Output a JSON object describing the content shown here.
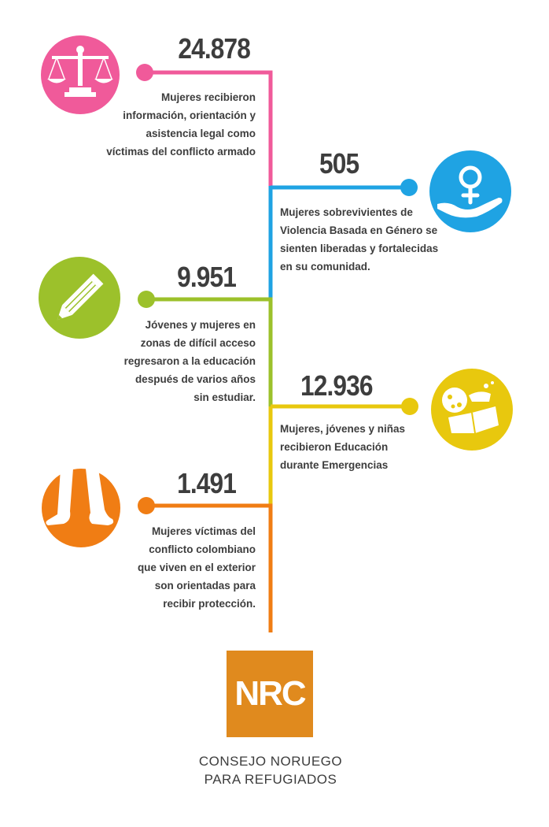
{
  "colors": {
    "pink": "#f05a9a",
    "blue": "#1fa3e3",
    "green": "#9cc12b",
    "yellow": "#e8c80e",
    "orange": "#f07d14",
    "nrc": "#e08a1e",
    "text": "#3d3d3d"
  },
  "stats": [
    {
      "value": "24.878",
      "description": "Mujeres recibieron\ninformación, orientación y\nasistencia legal como\nvíctimas del conflicto armado",
      "icon": "scales-icon",
      "color": "pink"
    },
    {
      "value": "505",
      "description": "Mujeres sobrevivientes de\nViolencia Basada en Género se\nsienten liberadas y fortalecidas\nen su comunidad.",
      "icon": "female-hand-icon",
      "color": "blue"
    },
    {
      "value": "9.951",
      "description": "Jóvenes y mujeres en\nzonas de difícil acceso\nregresaron a la educación\ndespués de varios años\nsin estudiar.",
      "icon": "pencil-icon",
      "color": "green"
    },
    {
      "value": "12.936",
      "description": "Mujeres, jóvenes y niñas\nrecibieron Educación\ndurante Emergencias",
      "icon": "education-icon",
      "color": "yellow"
    },
    {
      "value": "1.491",
      "description": "Mujeres víctimas del\nconflicto colombiano\nque viven en el exterior\nson orientadas para\nrecibir protección.",
      "icon": "walking-feet-icon",
      "color": "orange"
    }
  ],
  "footer": {
    "logo_text": "NRC",
    "org_name": "CONSEJO NORUEGO\nPARA REFUGIADOS"
  }
}
